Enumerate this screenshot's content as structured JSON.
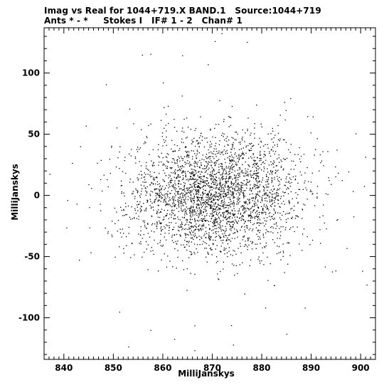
{
  "header": {
    "title_line1": "Imag vs Real for 1044+719.X BAND.1   Source:1044+719",
    "title_line2": "Ants * - *     Stokes I   IF# 1 - 2   Chan# 1"
  },
  "chart_data": {
    "type": "scatter",
    "xlabel": "MilliJanskys",
    "ylabel": "MilliJanskys",
    "xlim": [
      836,
      903
    ],
    "ylim": [
      -134,
      137
    ],
    "x_ticks": [
      840,
      850,
      860,
      870,
      880,
      890,
      900
    ],
    "y_ticks": [
      -100,
      -50,
      0,
      50,
      100
    ],
    "grid": false,
    "marker_color": "#000000",
    "distribution": {
      "n_points": 3000,
      "center_x": 870.5,
      "center_y": 1,
      "std_x": 9,
      "std_y": 25
    },
    "points": [
      [
        871.9,
        132.6
      ],
      [
        870.5,
        126.1
      ],
      [
        877.0,
        125.5
      ],
      [
        857.5,
        115.8
      ],
      [
        855.8,
        115.0
      ],
      [
        863.9,
        114.5
      ],
      [
        869.1,
        107.2
      ],
      [
        860.0,
        92.3
      ],
      [
        848.5,
        90.8
      ],
      [
        837.1,
        17.6
      ],
      [
        840.7,
        -3.8
      ],
      [
        840.5,
        -26.2
      ],
      [
        845.4,
        -46.5
      ],
      [
        900.3,
        -61.6
      ],
      [
        901.2,
        -72.8
      ],
      [
        894.9,
        -61.3
      ],
      [
        894.2,
        -62.2
      ],
      [
        853.0,
        -123.5
      ],
      [
        885.0,
        -113.0
      ],
      [
        857.5,
        -110.0
      ],
      [
        866.4,
        -106.2
      ],
      [
        873.8,
        -106.0
      ],
      [
        890.3,
        64.5
      ],
      [
        889.2,
        64.8
      ],
      [
        898.4,
        3.5
      ],
      [
        895.4,
        18.5
      ],
      [
        892.6,
        -22.2
      ],
      [
        846.7,
        26.6
      ],
      [
        848.3,
        -26.3
      ],
      [
        851.2,
        -95.0
      ],
      [
        880.7,
        -91.6
      ],
      [
        888.7,
        -91.7
      ],
      [
        866.4,
        -126.5
      ],
      [
        874.2,
        -121.9
      ],
      [
        862.3,
        -117.3
      ]
    ]
  }
}
